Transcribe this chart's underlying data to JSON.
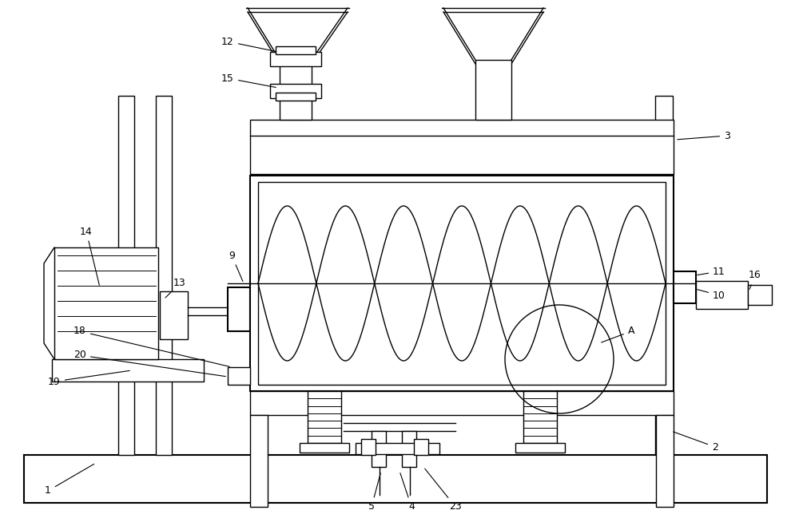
{
  "bg_color": "#ffffff",
  "line_color": "#000000",
  "lw": 1.0,
  "lw2": 1.5,
  "fig_w": 10.0,
  "fig_h": 6.49
}
